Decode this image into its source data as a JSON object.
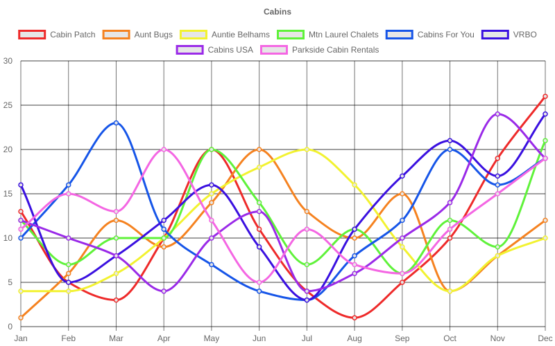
{
  "chart_data": {
    "type": "line",
    "title": "Cabins",
    "xlabel": "",
    "ylabel": "",
    "categories": [
      "Jan",
      "Feb",
      "Mar",
      "Apr",
      "May",
      "Jun",
      "Jul",
      "Aug",
      "Sep",
      "Oct",
      "Nov",
      "Dec"
    ],
    "ylim": [
      0,
      30
    ],
    "yticks": [
      0,
      5,
      10,
      15,
      20,
      25,
      30
    ],
    "grid": true,
    "legend_position": "top",
    "series": [
      {
        "name": "Cabin Patch",
        "color": "#ee2a2a",
        "values": [
          13,
          5,
          3,
          10,
          20,
          11,
          4,
          1,
          5,
          10,
          19,
          26
        ]
      },
      {
        "name": "Aunt Bugs",
        "color": "#f58220",
        "values": [
          1,
          6,
          12,
          9,
          14,
          20,
          13,
          10,
          15,
          4,
          8,
          12
        ]
      },
      {
        "name": "Auntie Belhams",
        "color": "#f2f230",
        "values": [
          4,
          4,
          6,
          10,
          15,
          18,
          20,
          16,
          9,
          4,
          8,
          10
        ]
      },
      {
        "name": "Mtn Laurel Chalets",
        "color": "#5ff23a",
        "values": [
          12,
          7,
          10,
          10,
          20,
          14,
          7,
          11,
          6,
          12,
          9,
          21
        ]
      },
      {
        "name": "Cabins For You",
        "color": "#1655e8",
        "values": [
          10,
          16,
          23,
          11,
          7,
          4,
          3,
          8,
          12,
          20,
          16,
          19
        ]
      },
      {
        "name": "VRBO",
        "color": "#3a10e0",
        "values": [
          16,
          5,
          8,
          12,
          16,
          9,
          3,
          11,
          17,
          21,
          17,
          24
        ]
      },
      {
        "name": "Cabins USA",
        "color": "#9a2ae8",
        "values": [
          12,
          10,
          8,
          4,
          10,
          13,
          4,
          6,
          10,
          14,
          24,
          19
        ]
      },
      {
        "name": "Parkside Cabin Rentals",
        "color": "#f466e3",
        "values": [
          11,
          15,
          13,
          20,
          12,
          5,
          11,
          7,
          6,
          11,
          15,
          19
        ]
      }
    ]
  }
}
